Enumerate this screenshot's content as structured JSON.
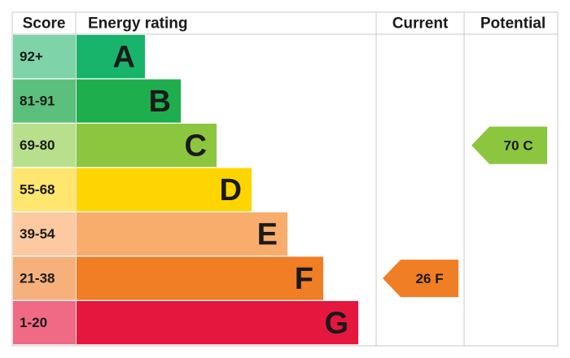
{
  "headers": {
    "score": "Score",
    "rating": "Energy rating",
    "current": "Current",
    "potential": "Potential"
  },
  "bands": [
    {
      "range": "92+",
      "letter": "A",
      "color": "#19b46b",
      "light": "#7fd3a8"
    },
    {
      "range": "81-91",
      "letter": "B",
      "color": "#1fae4e",
      "light": "#5cc07d"
    },
    {
      "range": "69-80",
      "letter": "C",
      "color": "#8cc63f",
      "light": "#b8e08c"
    },
    {
      "range": "55-68",
      "letter": "D",
      "color": "#ffd500",
      "light": "#ffe66e"
    },
    {
      "range": "39-54",
      "letter": "E",
      "color": "#f9ad6d",
      "light": "#fcc9a0"
    },
    {
      "range": "21-38",
      "letter": "F",
      "color": "#f07e24",
      "light": "#f5b07c"
    },
    {
      "range": "1-20",
      "letter": "G",
      "color": "#e5173f",
      "light": "#f06a85"
    }
  ],
  "current": {
    "score": 26,
    "rating": "F"
  },
  "potential": {
    "score": 70,
    "rating": "C"
  }
}
